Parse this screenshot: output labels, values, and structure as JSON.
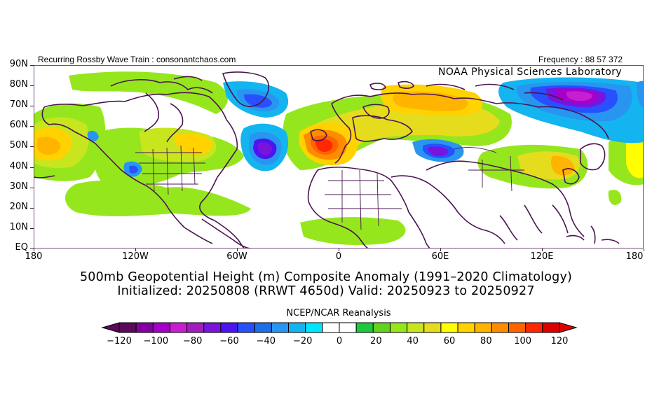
{
  "header": {
    "left_text": "Recurring Rossby Wave Train : consonantchaos.com",
    "right_text": "Frequency : 88 57 372",
    "lab": "NOAA Physical Sciences Laboratory"
  },
  "map": {
    "lat_labels": [
      "90N",
      "80N",
      "70N",
      "60N",
      "50N",
      "40N",
      "30N",
      "20N",
      "10N",
      "EQ"
    ],
    "lon_labels": [
      "180",
      "120W",
      "60W",
      "0",
      "60E",
      "120E",
      "180"
    ]
  },
  "titles": {
    "line1": "500mb Geopotential Height (m) Composite Anomaly (1991–2020 Climatology)",
    "line2": "Initialized: 20250808 (RRWT 4650d) Valid: 20250923 to 20250927",
    "source": "NCEP/NCAR Reanalysis"
  },
  "colorbar": {
    "tick_labels": [
      "−120",
      "−100",
      "−80",
      "−60",
      "−40",
      "−20",
      "0",
      "20",
      "40",
      "60",
      "80",
      "100",
      "120"
    ],
    "colors": [
      "#5a0a5a",
      "#8200a0",
      "#a500c8",
      "#c81ed2",
      "#a01ebe",
      "#7814dc",
      "#4b14f0",
      "#2850ff",
      "#1e6ee6",
      "#2896f0",
      "#14b4f0",
      "#00e6ff",
      "#ffffff",
      "#ffffff",
      "#1ec83c",
      "#64d21e",
      "#96e61e",
      "#c8e61e",
      "#e6dc1e",
      "#ffff00",
      "#ffd200",
      "#ffb400",
      "#ff8c00",
      "#ff6400",
      "#ff2800",
      "#dc0000"
    ]
  },
  "legend_colors": {
    "neg_strong": "#8200a0",
    "neg": "#2850ff",
    "neg_light": "#2896f0",
    "pos_light": "#96e61e",
    "pos": "#ffd200",
    "pos_strong": "#ff6400",
    "outline": "#4a1450"
  }
}
